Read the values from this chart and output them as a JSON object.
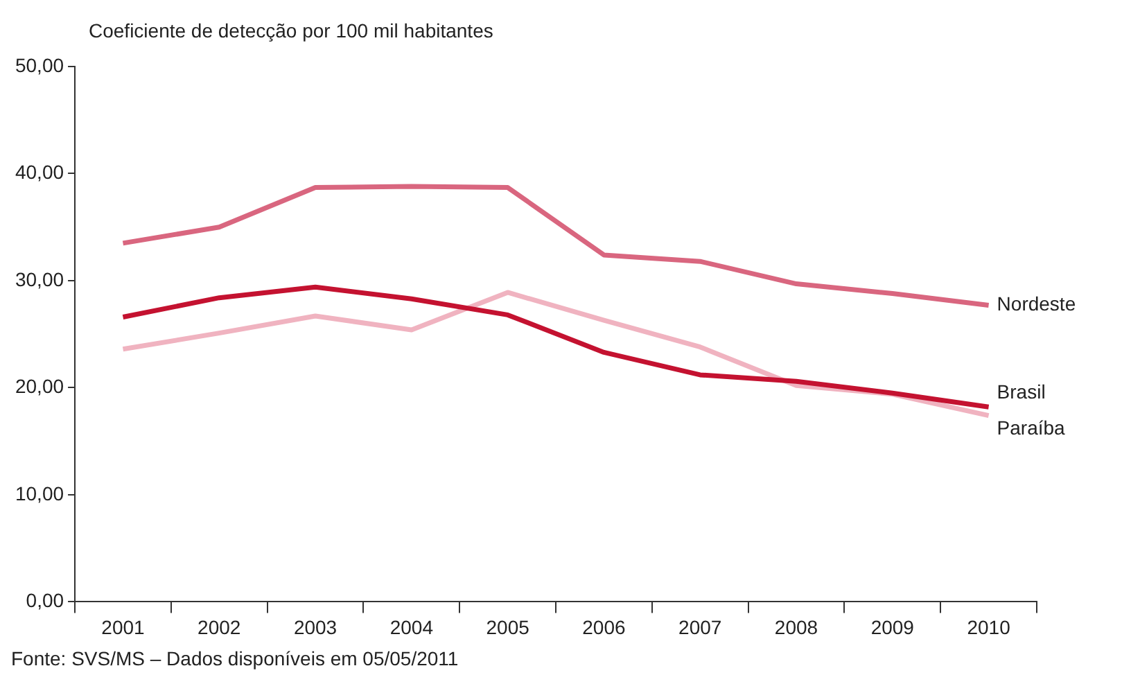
{
  "chart_data": {
    "type": "line",
    "ylabel": "Coeficiente de detecção por 100 mil habitantes",
    "categories": [
      "2001",
      "2002",
      "2003",
      "2004",
      "2005",
      "2006",
      "2007",
      "2008",
      "2009",
      "2010"
    ],
    "series": [
      {
        "name": "Nordeste",
        "color": "#d9667f",
        "values": [
          33.5,
          35.0,
          38.7,
          38.8,
          38.7,
          32.4,
          31.8,
          29.7,
          28.8,
          27.7
        ]
      },
      {
        "name": "Brasil",
        "color": "#c41230",
        "values": [
          26.6,
          28.4,
          29.4,
          28.3,
          26.8,
          23.3,
          21.2,
          20.6,
          19.5,
          18.2
        ]
      },
      {
        "name": "Paraíba",
        "color": "#f0b3c0",
        "values": [
          23.6,
          25.1,
          26.7,
          25.4,
          28.9,
          26.3,
          23.8,
          20.2,
          19.4,
          17.4
        ]
      }
    ],
    "ylim": [
      0,
      50
    ],
    "yticks": [
      {
        "value": 0,
        "label": "0,00"
      },
      {
        "value": 10,
        "label": "10,00"
      },
      {
        "value": 20,
        "label": "20,00"
      },
      {
        "value": 30,
        "label": "30,00"
      },
      {
        "value": 40,
        "label": "40,00"
      },
      {
        "value": 50,
        "label": "50,00"
      }
    ],
    "grid": false,
    "legend": false,
    "marker": "none",
    "line_style": "solid",
    "annotations": [
      "Fonte: SVS/MS – Dados disponíveis em 05/05/2011"
    ]
  }
}
